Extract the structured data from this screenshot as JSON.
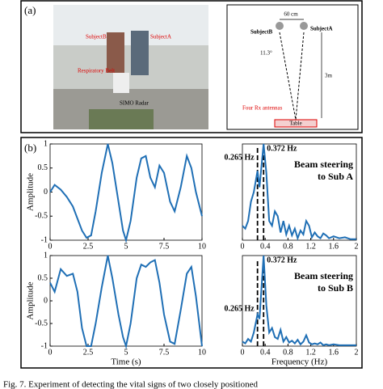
{
  "panel_a": {
    "label": "(a)",
    "photo": {
      "labels": [
        "SubjectB",
        "SubjectA",
        "Respiratory Belt",
        "SIMO Radar"
      ]
    },
    "diagram": {
      "width": "60 cm",
      "subject_b": "SubjectB",
      "subject_a": "SubjectA",
      "angle": "11.3°",
      "distance": "3m",
      "antennas": "Four Rx antennas",
      "table": "Table"
    }
  },
  "panel_b": {
    "label": "(b)"
  },
  "caption": "Fig. 7.   Experiment of detecting the vital signs of two closely positioned",
  "chart_data": [
    {
      "type": "line",
      "ylabel": "Amplitude",
      "color": "#1f6fb5",
      "x": [
        0,
        0.3,
        0.7,
        1.1,
        1.5,
        1.8,
        2.1,
        2.4,
        2.7,
        3.0,
        3.4,
        3.8,
        4.1,
        4.5,
        4.8,
        5.0,
        5.3,
        5.7,
        6.0,
        6.3,
        6.6,
        6.9,
        7.2,
        7.5,
        7.9,
        8.2,
        8.6,
        9.0,
        9.3,
        9.6,
        10
      ],
      "values": [
        0,
        0.15,
        0.05,
        -0.1,
        -0.3,
        -0.55,
        -0.8,
        -0.95,
        -0.9,
        -0.4,
        0.4,
        1,
        0.6,
        -0.2,
        -0.8,
        -1,
        -0.6,
        0.3,
        0.7,
        0.75,
        0.3,
        0.1,
        0.55,
        0.4,
        -0.2,
        -0.4,
        0.1,
        0.75,
        0.5,
        0,
        -0.5
      ],
      "xlim": [
        0,
        10
      ],
      "xticks": [
        0,
        2.5,
        5,
        7.5,
        10
      ],
      "ylim": [
        -1,
        1
      ],
      "yticks": [
        -1,
        -0.5,
        0,
        0.5,
        1
      ]
    },
    {
      "type": "line",
      "color": "#1f6fb5",
      "x": [
        0,
        0.05,
        0.1,
        0.15,
        0.2,
        0.265,
        0.3,
        0.372,
        0.42,
        0.47,
        0.52,
        0.57,
        0.62,
        0.67,
        0.72,
        0.77,
        0.82,
        0.87,
        0.92,
        0.97,
        1.02,
        1.07,
        1.12,
        1.17,
        1.22,
        1.27,
        1.32,
        1.37,
        1.42,
        1.47,
        1.52,
        1.6,
        1.7,
        1.8,
        1.9,
        2
      ],
      "values": [
        0.15,
        0.12,
        0.2,
        0.4,
        0.5,
        0.72,
        0.55,
        1,
        0.7,
        0.2,
        0.15,
        0.3,
        0.25,
        0.08,
        0.2,
        0.06,
        0.15,
        0.05,
        0.12,
        0.02,
        0.1,
        0.06,
        0.2,
        0.15,
        0.03,
        0.08,
        0.04,
        0.02,
        0.07,
        0.05,
        0.02,
        0.04,
        0.02,
        0.03,
        0.01,
        0.01
      ],
      "xlim": [
        0,
        2
      ],
      "xticks": [
        0,
        0.4,
        0.8,
        1.2,
        1.6,
        2
      ],
      "ylim": [
        0,
        1
      ],
      "annotations": [
        {
          "value": 0.372,
          "label": "0.372 Hz"
        },
        {
          "value": 0.265,
          "label": "0.265 Hz"
        }
      ],
      "text": [
        "Beam steering",
        "to Sub A"
      ]
    },
    {
      "type": "line",
      "ylabel": "Amplitude",
      "xlabel": "Time (s)",
      "color": "#1f6fb5",
      "x": [
        0,
        0.3,
        0.7,
        1.1,
        1.5,
        1.8,
        2.1,
        2.4,
        2.7,
        3.0,
        3.4,
        3.8,
        4.1,
        4.5,
        4.8,
        5.0,
        5.3,
        5.7,
        6.0,
        6.3,
        6.6,
        6.9,
        7.2,
        7.5,
        7.9,
        8.2,
        8.6,
        9.0,
        9.3,
        9.6,
        10
      ],
      "values": [
        0.4,
        0.2,
        0.7,
        0.55,
        0.6,
        0.2,
        -0.6,
        -1,
        -1,
        -0.5,
        0.3,
        1,
        0.5,
        -0.3,
        -0.8,
        -1,
        -0.5,
        0.5,
        0.8,
        0.75,
        0.85,
        0.9,
        0.4,
        -0.3,
        -0.9,
        -0.95,
        -0.2,
        0.6,
        0.75,
        0.1,
        -1
      ],
      "xlim": [
        0,
        10
      ],
      "xticks": [
        0,
        2.5,
        5,
        7.5,
        10
      ],
      "ylim": [
        -1,
        1
      ],
      "yticks": [
        -1,
        -0.5,
        0,
        0.5,
        1
      ]
    },
    {
      "type": "line",
      "xlabel": "Frequency (Hz)",
      "color": "#1f6fb5",
      "x": [
        0,
        0.05,
        0.1,
        0.15,
        0.2,
        0.265,
        0.3,
        0.372,
        0.42,
        0.47,
        0.52,
        0.57,
        0.62,
        0.67,
        0.72,
        0.77,
        0.82,
        0.87,
        0.92,
        0.97,
        1.02,
        1.07,
        1.12,
        1.17,
        1.22,
        1.27,
        1.32,
        1.37,
        1.42,
        1.47,
        1.52,
        1.6,
        1.7,
        1.8,
        1.9,
        2
      ],
      "values": [
        0.05,
        0.03,
        0.08,
        0.05,
        0.15,
        0.35,
        0.3,
        1,
        0.45,
        0.15,
        0.2,
        0.1,
        0.08,
        0.18,
        0.05,
        0.1,
        0.04,
        0.06,
        0.03,
        0.07,
        0.02,
        0.05,
        0.12,
        0.04,
        0.02,
        0.03,
        0.02,
        0.04,
        0.01,
        0.02,
        0.01,
        0.02,
        0.01,
        0.01,
        0.01,
        0.01
      ],
      "xlim": [
        0,
        2
      ],
      "xticks": [
        0,
        0.4,
        0.8,
        1.2,
        1.6,
        2
      ],
      "ylim": [
        0,
        1
      ],
      "annotations": [
        {
          "value": 0.372,
          "label": "0.372 Hz"
        },
        {
          "value": 0.265,
          "label": "0.265 Hz"
        }
      ],
      "text": [
        "Beam steering",
        "to Sub B"
      ]
    }
  ]
}
